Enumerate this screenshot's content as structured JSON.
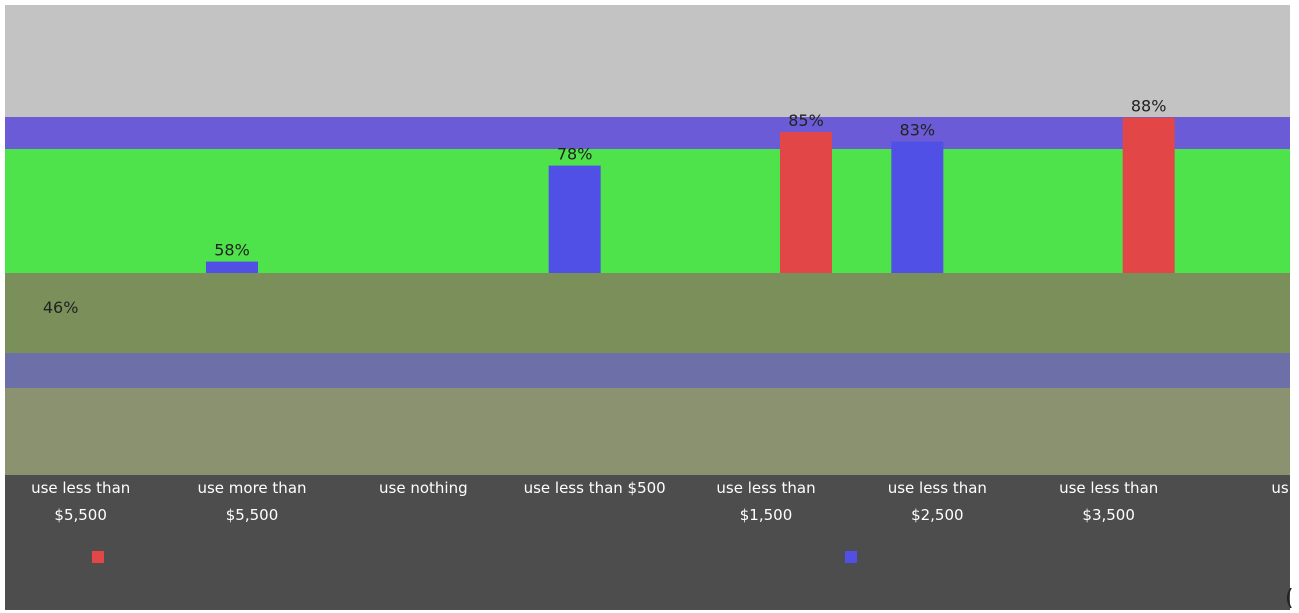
{
  "colors": {
    "plot_background": "#c3c3c3",
    "band_purple": "#6b5bd6",
    "band_green": "#4ee34a",
    "series_red": "#e34646",
    "series_blue": "#5050e6",
    "axis_panel": "#4d4d4d",
    "label_text": "#ffffff",
    "data_label_text": "#222222"
  },
  "chart_data": {
    "type": "bar",
    "title": "",
    "xlabel": "",
    "ylabel": "",
    "ylim": [
      0,
      100
    ],
    "categories": [
      "use less than $5,500",
      "use more than $5,500",
      "use nothing",
      "use less than $500",
      "use less than $1,500",
      "use less than $2,500",
      "use less than $3,500",
      "us"
    ],
    "series": [
      {
        "color": "#e34646",
        "values": [
          null,
          null,
          null,
          null,
          85,
          null,
          88,
          null
        ]
      },
      {
        "color": "#5050e6",
        "values": [
          46,
          58,
          null,
          78,
          null,
          83,
          null,
          null
        ]
      }
    ],
    "data_labels": [
      "46%",
      "58%",
      "78%",
      "85%",
      "83%",
      "88%"
    ],
    "legend": {
      "position": "bottom",
      "entries": [
        "",
        ""
      ]
    },
    "grid": false,
    "truncated_text": "("
  }
}
